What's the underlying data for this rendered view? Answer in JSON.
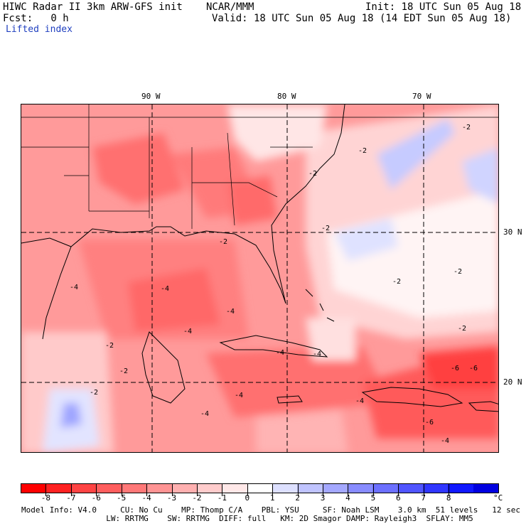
{
  "header": {
    "model_title": "HIWC Radar II 3km ARW-GFS init",
    "agency": "NCAR/MMM",
    "init": "Init: 18 UTC Sun 05 Aug 18",
    "fcst": "Fcst:   0 h",
    "valid": "Valid: 18 UTC Sun 05 Aug 18 (14 EDT Sun 05 Aug 18)",
    "field": "Lifted index"
  },
  "map": {
    "lon_labels": [
      "90 W",
      "80 W",
      "70 W"
    ],
    "lat_labels": [
      "30 N",
      "20 N"
    ],
    "contour_labels": [
      "-2",
      "-2",
      "-2",
      "-2",
      "-2",
      "-2",
      "-2",
      "-2",
      "-4",
      "-4",
      "-4",
      "-4",
      "-4",
      "-4",
      "-4",
      "-6",
      "-6",
      "-6",
      "-2",
      "-2",
      "-4",
      "-4",
      "-2",
      "-4"
    ]
  },
  "colorbar": {
    "ticks": [
      "-8",
      "-7",
      "-6",
      "-5",
      "-4",
      "-3",
      "-2",
      "-1",
      "0",
      "1",
      "2",
      "3",
      "4",
      "5",
      "6",
      "7",
      "8"
    ],
    "unit": "°C",
    "colors": [
      "#ff0000",
      "#ff2222",
      "#ff4444",
      "#ff5e5e",
      "#ff7878",
      "#ff9494",
      "#ffb0b0",
      "#ffcccc",
      "#ffe8e8",
      "#ffffff",
      "#dde0ff",
      "#c0c4ff",
      "#a4a8ff",
      "#888cff",
      "#6c70ff",
      "#5055ff",
      "#3036ff",
      "#1018ff",
      "#0000e0"
    ]
  },
  "footer": {
    "line1": "Model Info: V4.0     CU: No Cu    MP: Thomp C/A    PBL: YSU     SF: Noah LSM    3.0 km  51 levels   12 sec",
    "line2": "                  LW: RRTMG    SW: RRTMG  DIFF: full   KM: 2D Smagor DAMP: Rayleigh3  SFLAY: MM5"
  }
}
